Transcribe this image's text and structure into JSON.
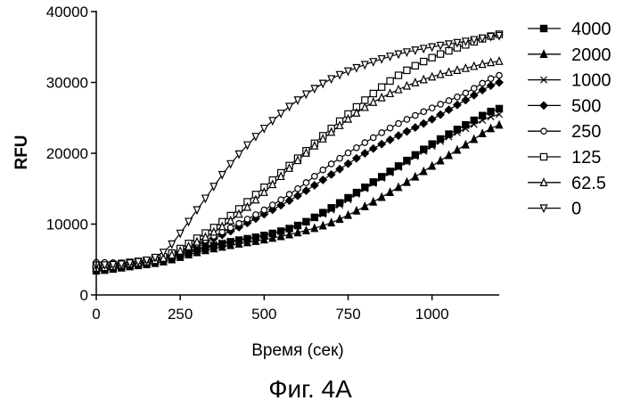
{
  "chart_data": {
    "type": "line",
    "title": "",
    "xlabel": "Время (сек)",
    "ylabel": "RFU",
    "xlim": [
      0,
      1200
    ],
    "ylim": [
      0,
      40000
    ],
    "x_ticks": [
      0,
      250,
      500,
      750,
      1000
    ],
    "y_ticks": [
      0,
      10000,
      20000,
      30000,
      40000
    ],
    "x_tick_labels": [
      "0",
      "250",
      "500",
      "750",
      "1000"
    ],
    "y_tick_labels": [
      "0",
      "10000",
      "20000",
      "30000",
      "40000"
    ],
    "grid": false,
    "legend_position": "right",
    "series": [
      {
        "name": "4000",
        "marker": "filled-square",
        "points": [
          [
            0,
            3600
          ],
          [
            100,
            4200
          ],
          [
            200,
            5000
          ],
          [
            300,
            6300
          ],
          [
            400,
            7500
          ],
          [
            500,
            8400
          ],
          [
            600,
            9800
          ],
          [
            700,
            12300
          ],
          [
            800,
            15200
          ],
          [
            900,
            18200
          ],
          [
            1000,
            21300
          ],
          [
            1100,
            24000
          ],
          [
            1200,
            26300
          ]
        ]
      },
      {
        "name": "2000",
        "marker": "filled-triangle",
        "points": [
          [
            0,
            3400
          ],
          [
            100,
            4000
          ],
          [
            200,
            4700
          ],
          [
            300,
            6000
          ],
          [
            400,
            7000
          ],
          [
            500,
            7800
          ],
          [
            600,
            8800
          ],
          [
            700,
            10200
          ],
          [
            800,
            12500
          ],
          [
            900,
            15200
          ],
          [
            1000,
            18200
          ],
          [
            1100,
            21200
          ],
          [
            1200,
            24000
          ]
        ]
      },
      {
        "name": "1000",
        "marker": "cross",
        "points": [
          [
            0,
            3800
          ],
          [
            100,
            4400
          ],
          [
            200,
            5200
          ],
          [
            300,
            6500
          ],
          [
            400,
            7600
          ],
          [
            500,
            8400
          ],
          [
            600,
            9900
          ],
          [
            700,
            12000
          ],
          [
            800,
            15000
          ],
          [
            900,
            18000
          ],
          [
            1000,
            21000
          ],
          [
            1100,
            23500
          ],
          [
            1200,
            25500
          ]
        ]
      },
      {
        "name": "500",
        "marker": "filled-diamond",
        "points": [
          [
            0,
            4000
          ],
          [
            100,
            4400
          ],
          [
            200,
            5200
          ],
          [
            300,
            7000
          ],
          [
            400,
            9000
          ],
          [
            500,
            11400
          ],
          [
            600,
            14000
          ],
          [
            700,
            17000
          ],
          [
            800,
            20000
          ],
          [
            900,
            22500
          ],
          [
            1000,
            24800
          ],
          [
            1100,
            27500
          ],
          [
            1200,
            30000
          ]
        ]
      },
      {
        "name": "250",
        "marker": "open-circle",
        "points": [
          [
            0,
            4600
          ],
          [
            100,
            4600
          ],
          [
            200,
            5400
          ],
          [
            300,
            7200
          ],
          [
            400,
            9500
          ],
          [
            500,
            12000
          ],
          [
            600,
            15000
          ],
          [
            700,
            18500
          ],
          [
            800,
            21500
          ],
          [
            900,
            24200
          ],
          [
            1000,
            26400
          ],
          [
            1100,
            28500
          ],
          [
            1200,
            31000
          ]
        ]
      },
      {
        "name": "125",
        "marker": "open-square",
        "points": [
          [
            0,
            4100
          ],
          [
            100,
            4600
          ],
          [
            200,
            5400
          ],
          [
            300,
            8000
          ],
          [
            400,
            11200
          ],
          [
            500,
            15200
          ],
          [
            600,
            19300
          ],
          [
            700,
            23500
          ],
          [
            800,
            27500
          ],
          [
            900,
            31000
          ],
          [
            1000,
            33500
          ],
          [
            1100,
            35300
          ],
          [
            1200,
            36800
          ]
        ]
      },
      {
        "name": "62.5",
        "marker": "open-triangle",
        "points": [
          [
            0,
            3800
          ],
          [
            100,
            4400
          ],
          [
            200,
            5200
          ],
          [
            300,
            7500
          ],
          [
            400,
            10500
          ],
          [
            500,
            14500
          ],
          [
            600,
            19000
          ],
          [
            700,
            23000
          ],
          [
            800,
            26500
          ],
          [
            900,
            29000
          ],
          [
            1000,
            30800
          ],
          [
            1100,
            32000
          ],
          [
            1200,
            33000
          ]
        ]
      },
      {
        "name": "0",
        "marker": "open-triangle-down",
        "points": [
          [
            0,
            4200
          ],
          [
            100,
            4500
          ],
          [
            200,
            6000
          ],
          [
            300,
            12000
          ],
          [
            400,
            18500
          ],
          [
            500,
            23500
          ],
          [
            600,
            27500
          ],
          [
            700,
            30500
          ],
          [
            800,
            32500
          ],
          [
            900,
            34000
          ],
          [
            1000,
            35000
          ],
          [
            1100,
            35800
          ],
          [
            1200,
            36600
          ]
        ]
      }
    ]
  },
  "caption": "Фиг. 4A"
}
